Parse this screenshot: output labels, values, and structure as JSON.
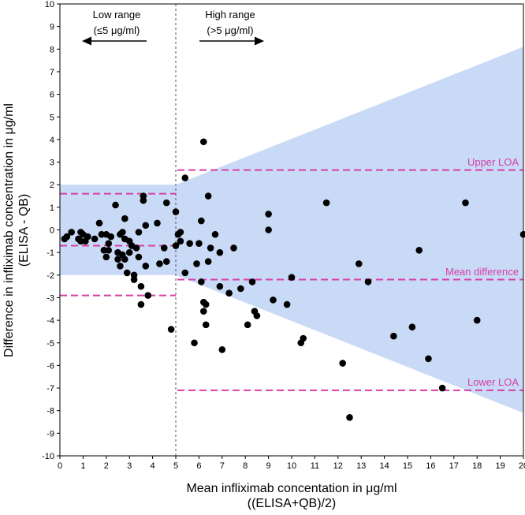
{
  "chart_data": {
    "type": "scatter",
    "title": "",
    "xlabel_line1": "Mean infliximab concentation in μg/ml",
    "xlabel_line2": "((ELISA+QB)/2)",
    "ylabel_line1": "Difference in infliximab concentration in μg/ml",
    "ylabel_line2": "(ELISA - QB)",
    "xlim": [
      0,
      20
    ],
    "ylim": [
      -10,
      10
    ],
    "xticks": [
      0,
      1,
      2,
      3,
      4,
      5,
      6,
      7,
      8,
      9,
      10,
      11,
      12,
      13,
      14,
      15,
      16,
      17,
      18,
      19,
      20
    ],
    "yticks": [
      10,
      9,
      8,
      7,
      6,
      5,
      4,
      3,
      2,
      1,
      0,
      -1,
      -2,
      -3,
      -4,
      -5,
      -6,
      -7,
      -8,
      -9,
      -10
    ],
    "colors": {
      "shade": "#c9daf6",
      "loa": "#d63fa6",
      "point": "#000000",
      "divider": "#555555"
    },
    "divider_x": 5,
    "low_range": {
      "label_line1": "Low range",
      "label_line2": "(≤5 μg/ml)",
      "shaded_band": [
        -2,
        2
      ],
      "upper_loa": 1.6,
      "mean_difference": -0.7,
      "lower_loa": -2.9
    },
    "high_range": {
      "label_line1": "High range",
      "label_line2": "(>5 μg/ml)",
      "shaded_band_start": [
        -2,
        2
      ],
      "shaded_band_end": [
        -8.1,
        8.1
      ],
      "upper_loa": 2.65,
      "mean_difference": -2.2,
      "lower_loa": -7.1
    },
    "loa_labels": {
      "upper": "Upper LOA",
      "mean": "Mean difference",
      "lower": "Lower LOA"
    },
    "points": [
      [
        0.2,
        -0.4
      ],
      [
        0.3,
        -0.3
      ],
      [
        0.5,
        -0.1
      ],
      [
        0.8,
        -0.4
      ],
      [
        0.9,
        -0.1
      ],
      [
        0.9,
        -0.5
      ],
      [
        1.0,
        -0.2
      ],
      [
        1.1,
        -0.5
      ],
      [
        1.2,
        -0.3
      ],
      [
        1.5,
        -0.4
      ],
      [
        1.7,
        0.3
      ],
      [
        1.8,
        -0.2
      ],
      [
        1.9,
        -0.9
      ],
      [
        2.0,
        -0.2
      ],
      [
        2.0,
        -1.2
      ],
      [
        2.1,
        -0.6
      ],
      [
        2.1,
        -0.9
      ],
      [
        2.2,
        -0.3
      ],
      [
        2.4,
        1.1
      ],
      [
        2.5,
        -1.0
      ],
      [
        2.5,
        -1.3
      ],
      [
        2.6,
        -0.2
      ],
      [
        2.6,
        -1.6
      ],
      [
        2.7,
        -0.1
      ],
      [
        2.7,
        -1.1
      ],
      [
        2.8,
        0.5
      ],
      [
        2.8,
        -0.4
      ],
      [
        2.8,
        -1.3
      ],
      [
        2.9,
        -1.9
      ],
      [
        3.0,
        -0.5
      ],
      [
        3.0,
        -1.0
      ],
      [
        3.1,
        -0.7
      ],
      [
        3.2,
        -2.0
      ],
      [
        3.2,
        -2.2
      ],
      [
        3.3,
        -0.8
      ],
      [
        3.4,
        -1.2
      ],
      [
        3.4,
        -0.1
      ],
      [
        3.5,
        -2.5
      ],
      [
        3.5,
        -3.3
      ],
      [
        3.6,
        1.5
      ],
      [
        3.6,
        1.3
      ],
      [
        3.7,
        -1.6
      ],
      [
        3.7,
        0.2
      ],
      [
        3.8,
        -2.9
      ],
      [
        4.2,
        0.3
      ],
      [
        4.3,
        -1.5
      ],
      [
        4.5,
        -0.8
      ],
      [
        4.6,
        -1.4
      ],
      [
        4.6,
        1.2
      ],
      [
        4.8,
        -4.4
      ],
      [
        5.0,
        -0.7
      ],
      [
        5.0,
        0.8
      ],
      [
        5.1,
        -0.2
      ],
      [
        5.2,
        -0.5
      ],
      [
        5.2,
        -0.1
      ],
      [
        5.4,
        -1.9
      ],
      [
        5.4,
        2.3
      ],
      [
        5.6,
        -0.6
      ],
      [
        5.8,
        -5.0
      ],
      [
        5.9,
        -1.5
      ],
      [
        6.0,
        -0.6
      ],
      [
        6.1,
        -2.3
      ],
      [
        6.1,
        0.4
      ],
      [
        6.2,
        3.9
      ],
      [
        6.2,
        -3.2
      ],
      [
        6.2,
        -3.6
      ],
      [
        6.3,
        -4.2
      ],
      [
        6.3,
        -3.3
      ],
      [
        6.4,
        -1.4
      ],
      [
        6.4,
        1.5
      ],
      [
        6.5,
        -0.8
      ],
      [
        6.7,
        -0.2
      ],
      [
        6.9,
        -1.0
      ],
      [
        6.9,
        -2.5
      ],
      [
        7.0,
        -5.3
      ],
      [
        7.3,
        -2.8
      ],
      [
        7.5,
        -0.8
      ],
      [
        7.8,
        -2.6
      ],
      [
        8.1,
        -4.2
      ],
      [
        8.3,
        -2.3
      ],
      [
        8.4,
        -3.6
      ],
      [
        8.5,
        -3.8
      ],
      [
        9.0,
        0.7
      ],
      [
        9.0,
        0.0
      ],
      [
        9.2,
        -3.1
      ],
      [
        9.8,
        -3.3
      ],
      [
        10.0,
        -2.1
      ],
      [
        10.4,
        -5.0
      ],
      [
        10.5,
        -4.8
      ],
      [
        11.5,
        1.2
      ],
      [
        12.2,
        -5.9
      ],
      [
        12.5,
        -8.3
      ],
      [
        12.9,
        -1.5
      ],
      [
        13.3,
        -2.3
      ],
      [
        14.4,
        -4.7
      ],
      [
        15.2,
        -4.3
      ],
      [
        15.5,
        -0.9
      ],
      [
        15.9,
        -5.7
      ],
      [
        16.5,
        -7.0
      ],
      [
        17.5,
        1.2
      ],
      [
        18.0,
        -4.0
      ],
      [
        20.0,
        -0.2
      ]
    ]
  }
}
